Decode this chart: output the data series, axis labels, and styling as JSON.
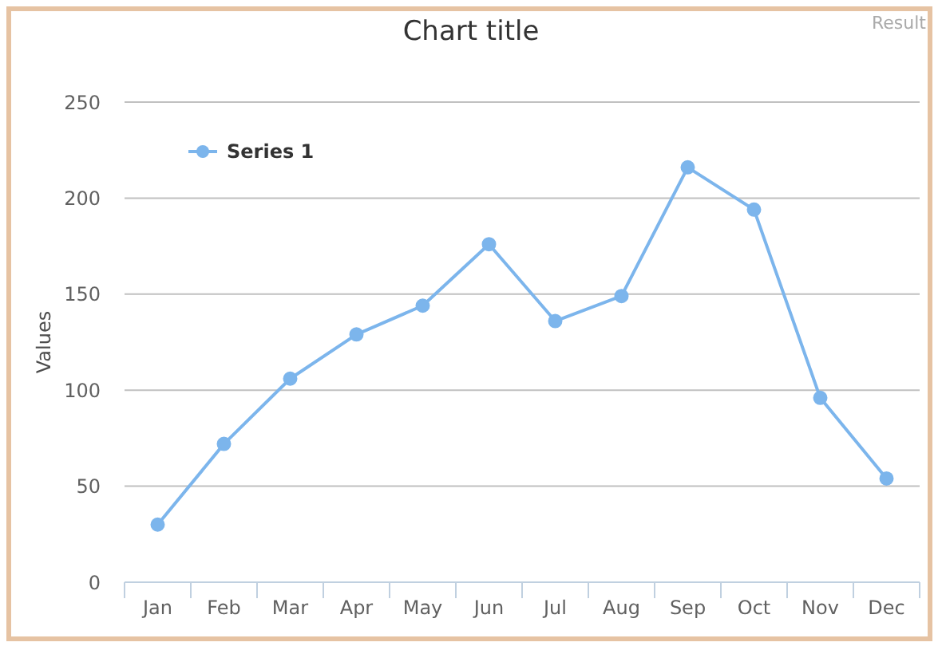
{
  "chart_data": {
    "type": "line",
    "title": "Chart title",
    "ylabel": "Values",
    "annotations": [
      "Result"
    ],
    "categories": [
      "Jan",
      "Feb",
      "Mar",
      "Apr",
      "May",
      "Jun",
      "Jul",
      "Aug",
      "Sep",
      "Oct",
      "Nov",
      "Dec"
    ],
    "series": [
      {
        "name": "Series 1",
        "color": "#7cb5ec",
        "values": [
          30,
          72,
          106,
          129,
          144,
          176,
          136,
          149,
          216,
          194,
          96,
          54
        ]
      }
    ],
    "ylim": [
      0,
      250
    ],
    "yticks": [
      0,
      50,
      100,
      150,
      200,
      250
    ],
    "grid": "y",
    "legend": "top left",
    "marker": "circle",
    "line_style": "solid"
  }
}
